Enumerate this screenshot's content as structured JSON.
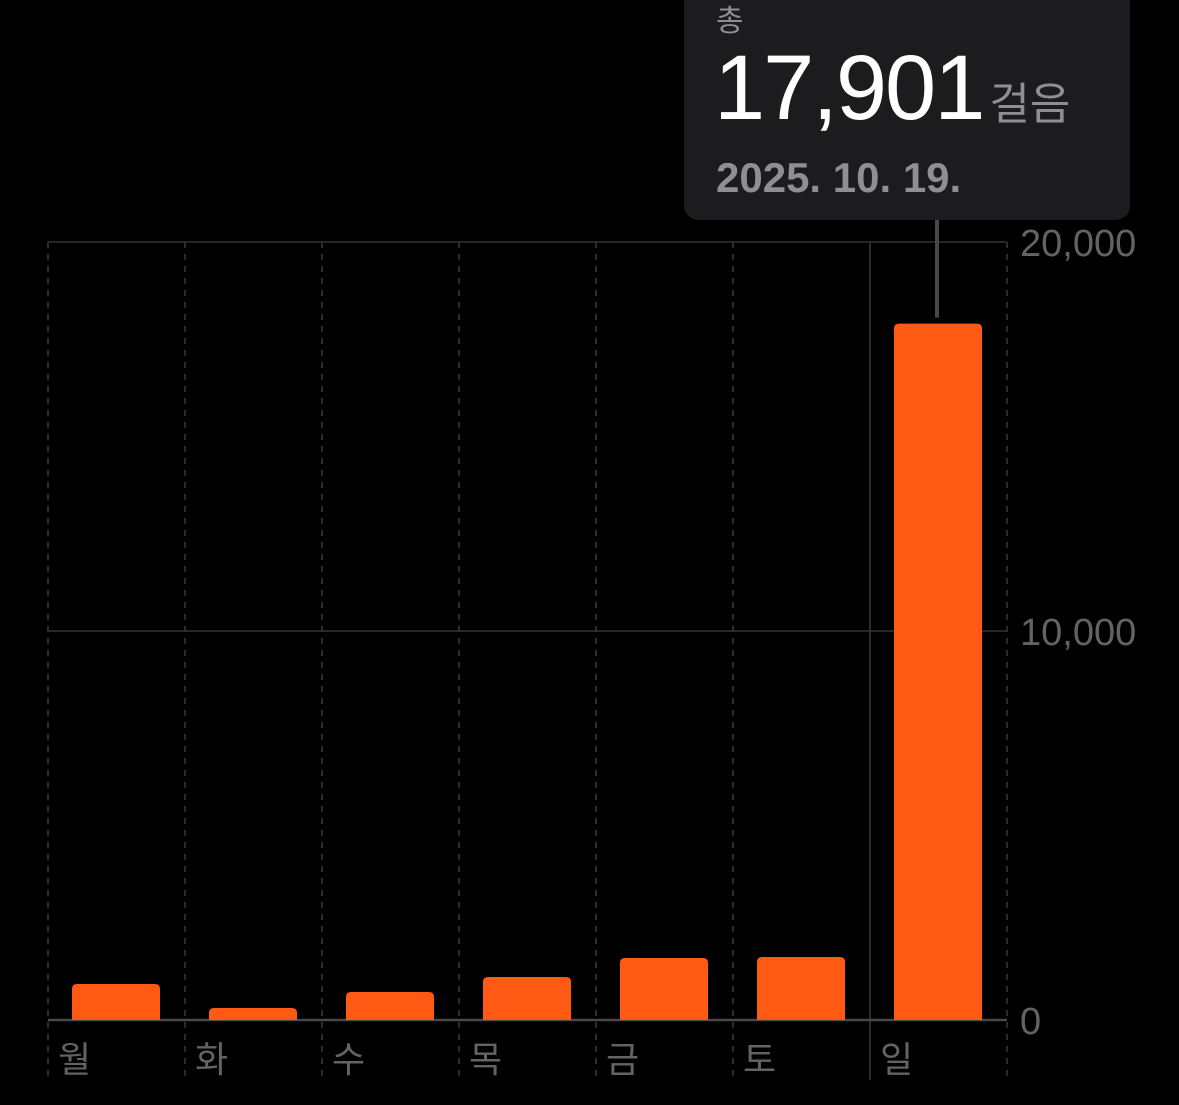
{
  "chart_data": {
    "type": "bar",
    "categories": [
      "월",
      "화",
      "수",
      "목",
      "금",
      "토",
      "일"
    ],
    "values": [
      925,
      310,
      720,
      1105,
      1595,
      1620,
      17901
    ],
    "ylim": [
      0,
      20000
    ],
    "yticks": [
      "0",
      "10,000",
      "20,000"
    ],
    "ytick_values": [
      0,
      10000,
      20000
    ],
    "grid": true,
    "selected_index": 6,
    "bar_color": "#ff5a14",
    "tooltip": {
      "label": "총",
      "value": "17,901",
      "unit": "걸음",
      "date": "2025. 10. 19."
    }
  }
}
